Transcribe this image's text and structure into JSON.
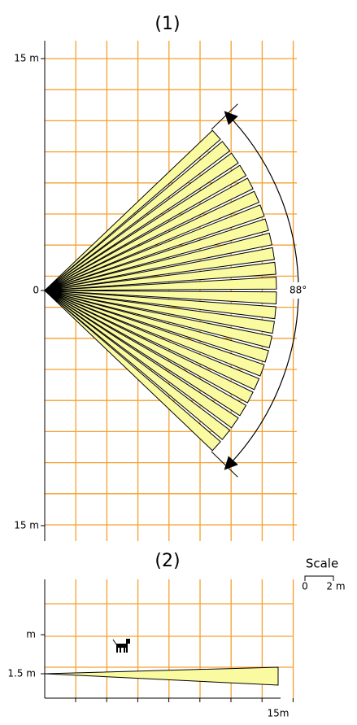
{
  "top": {
    "title": "(1)",
    "y_top": "15 m",
    "y_zero": "0",
    "y_bottom": "15 m",
    "angle": "88°"
  },
  "bottom": {
    "title": "(2)",
    "y_m": "m",
    "y_height": "1.5 m",
    "x_end": "15m"
  },
  "scale": {
    "title": "Scale",
    "start": "0",
    "end": "2 m"
  }
}
